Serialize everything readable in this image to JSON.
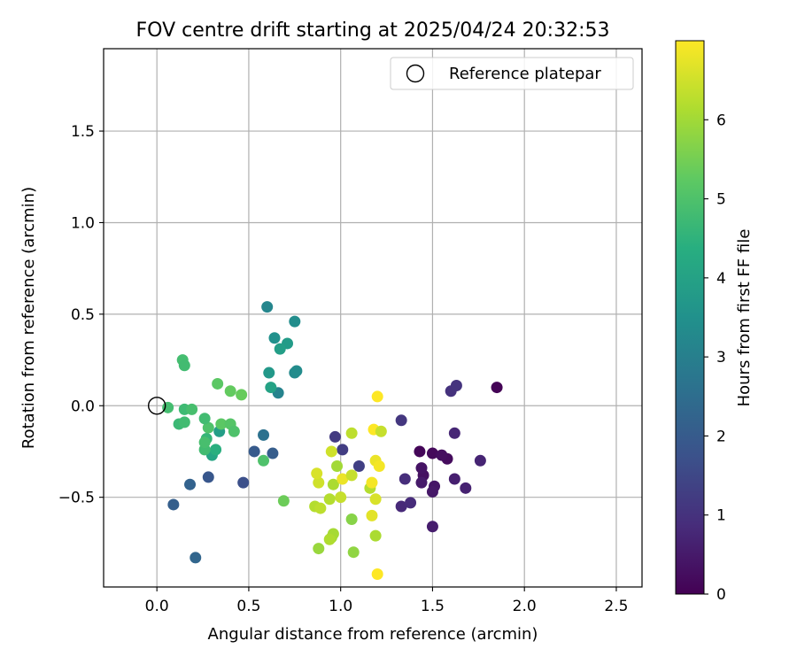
{
  "chart_data": {
    "type": "scatter",
    "title": "FOV centre drift starting at 2025/04/24 20:32:53",
    "xlabel": "Angular distance from reference (arcmin)",
    "ylabel": "Rotation from reference (arcmin)",
    "xlim": [
      -0.29,
      2.64
    ],
    "ylim": [
      -0.99,
      1.95
    ],
    "xticks": [
      0.0,
      0.5,
      1.0,
      1.5,
      2.0,
      2.5
    ],
    "xtick_labels": [
      "0.0",
      "0.5",
      "1.0",
      "1.5",
      "2.0",
      "2.5"
    ],
    "yticks": [
      -0.5,
      0.0,
      0.5,
      1.0,
      1.5
    ],
    "ytick_labels": [
      "−0.5",
      "0.0",
      "0.5",
      "1.0",
      "1.5"
    ],
    "grid": true,
    "legend": {
      "position": "top-right",
      "entries": [
        "Reference platepar"
      ]
    },
    "colormap": "viridis",
    "colorbar": {
      "label": "Hours from first FF file",
      "range": [
        0,
        7
      ],
      "ticks": [
        0,
        1,
        2,
        3,
        4,
        5,
        6
      ],
      "tick_labels": [
        "0",
        "1",
        "2",
        "3",
        "4",
        "5",
        "6"
      ]
    },
    "reference_point": {
      "x": 0.0,
      "y": 0.0
    },
    "points": [
      {
        "x": 1.85,
        "y": 0.1,
        "c": 0.05
      },
      {
        "x": 1.43,
        "y": -0.25,
        "c": 0.1
      },
      {
        "x": 1.5,
        "y": -0.26,
        "c": 0.15
      },
      {
        "x": 1.58,
        "y": -0.29,
        "c": 0.2
      },
      {
        "x": 1.55,
        "y": -0.27,
        "c": 0.25
      },
      {
        "x": 1.45,
        "y": -0.38,
        "c": 0.3
      },
      {
        "x": 1.44,
        "y": -0.34,
        "c": 0.35
      },
      {
        "x": 1.51,
        "y": -0.44,
        "c": 0.4
      },
      {
        "x": 1.5,
        "y": -0.47,
        "c": 0.45
      },
      {
        "x": 1.44,
        "y": -0.42,
        "c": 0.5
      },
      {
        "x": 1.5,
        "y": -0.66,
        "c": 0.55
      },
      {
        "x": 1.62,
        "y": -0.4,
        "c": 0.6
      },
      {
        "x": 1.68,
        "y": -0.45,
        "c": 0.65
      },
      {
        "x": 1.76,
        "y": -0.3,
        "c": 0.7
      },
      {
        "x": 1.62,
        "y": -0.15,
        "c": 0.75
      },
      {
        "x": 1.33,
        "y": -0.55,
        "c": 0.8
      },
      {
        "x": 1.38,
        "y": -0.53,
        "c": 0.85
      },
      {
        "x": 1.35,
        "y": -0.4,
        "c": 0.9
      },
      {
        "x": 1.6,
        "y": 0.08,
        "c": 1.0
      },
      {
        "x": 1.63,
        "y": 0.11,
        "c": 1.05
      },
      {
        "x": 1.33,
        "y": -0.08,
        "c": 1.1
      },
      {
        "x": 0.97,
        "y": -0.17,
        "c": 1.2
      },
      {
        "x": 1.01,
        "y": -0.24,
        "c": 1.25
      },
      {
        "x": 1.1,
        "y": -0.33,
        "c": 1.3
      },
      {
        "x": 0.47,
        "y": -0.42,
        "c": 1.7
      },
      {
        "x": 0.28,
        "y": -0.39,
        "c": 1.9
      },
      {
        "x": 0.53,
        "y": -0.25,
        "c": 2.0
      },
      {
        "x": 0.63,
        "y": -0.26,
        "c": 2.05
      },
      {
        "x": 0.09,
        "y": -0.54,
        "c": 2.1
      },
      {
        "x": 0.18,
        "y": -0.43,
        "c": 2.2
      },
      {
        "x": 0.21,
        "y": -0.83,
        "c": 2.3
      },
      {
        "x": 0.58,
        "y": -0.16,
        "c": 2.6
      },
      {
        "x": 0.66,
        "y": 0.07,
        "c": 3.1
      },
      {
        "x": 0.6,
        "y": 0.54,
        "c": 3.2
      },
      {
        "x": 0.75,
        "y": 0.18,
        "c": 3.3
      },
      {
        "x": 0.76,
        "y": 0.19,
        "c": 3.35
      },
      {
        "x": 0.75,
        "y": 0.46,
        "c": 3.4
      },
      {
        "x": 0.64,
        "y": 0.37,
        "c": 3.5
      },
      {
        "x": 0.71,
        "y": 0.34,
        "c": 3.8
      },
      {
        "x": 0.67,
        "y": 0.31,
        "c": 3.9
      },
      {
        "x": 0.61,
        "y": 0.18,
        "c": 3.7
      },
      {
        "x": 0.62,
        "y": 0.1,
        "c": 4.0
      },
      {
        "x": 0.34,
        "y": -0.14,
        "c": 3.9
      },
      {
        "x": 0.3,
        "y": -0.27,
        "c": 4.1
      },
      {
        "x": 0.32,
        "y": -0.24,
        "c": 4.4
      },
      {
        "x": 0.27,
        "y": -0.18,
        "c": 4.6
      },
      {
        "x": 0.26,
        "y": -0.24,
        "c": 4.8
      },
      {
        "x": 0.26,
        "y": -0.2,
        "c": 4.9
      },
      {
        "x": 0.28,
        "y": -0.12,
        "c": 5.0
      },
      {
        "x": 0.35,
        "y": -0.1,
        "c": 5.2
      },
      {
        "x": 0.4,
        "y": -0.1,
        "c": 5.1
      },
      {
        "x": 0.42,
        "y": -0.14,
        "c": 5.0
      },
      {
        "x": 0.12,
        "y": -0.1,
        "c": 4.7
      },
      {
        "x": 0.15,
        "y": -0.09,
        "c": 4.8
      },
      {
        "x": 0.15,
        "y": -0.02,
        "c": 4.75
      },
      {
        "x": 0.19,
        "y": -0.02,
        "c": 4.9
      },
      {
        "x": 0.26,
        "y": -0.07,
        "c": 4.8
      },
      {
        "x": 0.06,
        "y": -0.01,
        "c": 4.85
      },
      {
        "x": 0.14,
        "y": 0.25,
        "c": 4.85
      },
      {
        "x": 0.15,
        "y": 0.22,
        "c": 4.8
      },
      {
        "x": 0.33,
        "y": 0.12,
        "c": 5.2
      },
      {
        "x": 0.4,
        "y": 0.08,
        "c": 5.3
      },
      {
        "x": 0.46,
        "y": 0.06,
        "c": 5.35
      },
      {
        "x": 0.58,
        "y": -0.3,
        "c": 5.0
      },
      {
        "x": 0.69,
        "y": -0.52,
        "c": 5.4
      },
      {
        "x": 1.06,
        "y": -0.62,
        "c": 5.7
      },
      {
        "x": 1.07,
        "y": -0.8,
        "c": 5.8
      },
      {
        "x": 0.88,
        "y": -0.78,
        "c": 5.9
      },
      {
        "x": 0.95,
        "y": -0.72,
        "c": 6.0
      },
      {
        "x": 0.96,
        "y": -0.7,
        "c": 6.05
      },
      {
        "x": 1.19,
        "y": -0.71,
        "c": 6.1
      },
      {
        "x": 0.94,
        "y": -0.73,
        "c": 6.15
      },
      {
        "x": 0.86,
        "y": -0.55,
        "c": 6.2
      },
      {
        "x": 0.89,
        "y": -0.56,
        "c": 6.3
      },
      {
        "x": 0.94,
        "y": -0.51,
        "c": 6.2
      },
      {
        "x": 1.0,
        "y": -0.5,
        "c": 6.4
      },
      {
        "x": 0.96,
        "y": -0.43,
        "c": 6.1
      },
      {
        "x": 0.98,
        "y": -0.33,
        "c": 6.0
      },
      {
        "x": 0.88,
        "y": -0.42,
        "c": 6.5
      },
      {
        "x": 0.87,
        "y": -0.37,
        "c": 6.6
      },
      {
        "x": 0.95,
        "y": -0.25,
        "c": 6.5
      },
      {
        "x": 1.01,
        "y": -0.4,
        "c": 6.8
      },
      {
        "x": 1.06,
        "y": -0.38,
        "c": 6.4
      },
      {
        "x": 1.06,
        "y": -0.15,
        "c": 6.3
      },
      {
        "x": 1.16,
        "y": -0.45,
        "c": 6.2
      },
      {
        "x": 1.17,
        "y": -0.42,
        "c": 6.9
      },
      {
        "x": 1.19,
        "y": -0.51,
        "c": 6.6
      },
      {
        "x": 1.17,
        "y": -0.6,
        "c": 6.7
      },
      {
        "x": 1.18,
        "y": -0.13,
        "c": 7.0
      },
      {
        "x": 1.22,
        "y": -0.14,
        "c": 6.4
      },
      {
        "x": 1.19,
        "y": -0.3,
        "c": 6.8
      },
      {
        "x": 1.21,
        "y": -0.33,
        "c": 6.9
      },
      {
        "x": 1.2,
        "y": 0.05,
        "c": 7.0
      },
      {
        "x": 1.2,
        "y": -0.92,
        "c": 7.0
      }
    ]
  }
}
